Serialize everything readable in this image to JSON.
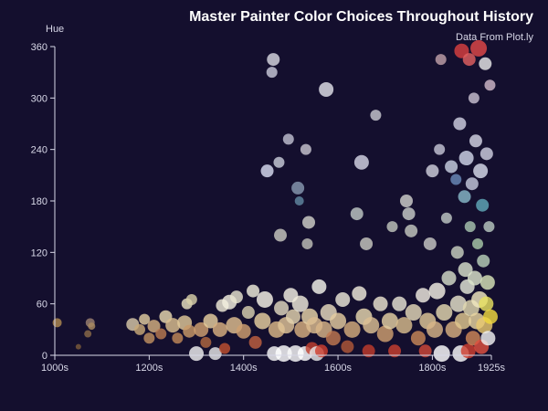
{
  "chart_data": {
    "type": "scatter",
    "title": "Master Painter Color Choices Throughout History",
    "subtitle": "Data From Plot.ly",
    "xlabel": "",
    "ylabel": "Hue",
    "xlim": [
      1000,
      1925
    ],
    "ylim": [
      0,
      360
    ],
    "x_ticks": [
      {
        "value": 1000,
        "label": "1000s"
      },
      {
        "value": 1200,
        "label": "1200s"
      },
      {
        "value": 1400,
        "label": "1400s"
      },
      {
        "value": 1600,
        "label": "1600s"
      },
      {
        "value": 1800,
        "label": "1800s"
      },
      {
        "value": 1925,
        "label": "1925s"
      }
    ],
    "y_ticks": [
      0,
      60,
      120,
      180,
      240,
      300,
      360
    ],
    "grid": false,
    "background": "#140f2e",
    "axis_color": "#d8d8e8",
    "points": [
      {
        "x": 1005,
        "y": 38,
        "s": 5,
        "c": "#b08a50"
      },
      {
        "x": 1050,
        "y": 10,
        "s": 3,
        "c": "#7a5a3a"
      },
      {
        "x": 1070,
        "y": 25,
        "s": 4,
        "c": "#8a6a48"
      },
      {
        "x": 1075,
        "y": 38,
        "s": 5,
        "c": "#9a8070"
      },
      {
        "x": 1078,
        "y": 34,
        "s": 4,
        "c": "#a88a60"
      },
      {
        "x": 1165,
        "y": 36,
        "s": 7,
        "c": "#d8c8a8"
      },
      {
        "x": 1180,
        "y": 30,
        "s": 6,
        "c": "#c8a878"
      },
      {
        "x": 1190,
        "y": 42,
        "s": 6,
        "c": "#e0cca0"
      },
      {
        "x": 1200,
        "y": 20,
        "s": 6,
        "c": "#c09060"
      },
      {
        "x": 1210,
        "y": 34,
        "s": 7,
        "c": "#d4b080"
      },
      {
        "x": 1225,
        "y": 25,
        "s": 6,
        "c": "#b87a50"
      },
      {
        "x": 1235,
        "y": 45,
        "s": 7,
        "c": "#e8d8b0"
      },
      {
        "x": 1250,
        "y": 35,
        "s": 8,
        "c": "#dcc090"
      },
      {
        "x": 1260,
        "y": 20,
        "s": 6,
        "c": "#c08858"
      },
      {
        "x": 1275,
        "y": 38,
        "s": 8,
        "c": "#e0c898"
      },
      {
        "x": 1280,
        "y": 60,
        "s": 6,
        "c": "#e8e0c0"
      },
      {
        "x": 1290,
        "y": 65,
        "s": 6,
        "c": "#d8d0a8"
      },
      {
        "x": 1285,
        "y": 28,
        "s": 7,
        "c": "#c89868"
      },
      {
        "x": 1300,
        "y": 2,
        "s": 8,
        "c": "#f0f0f0"
      },
      {
        "x": 1310,
        "y": 30,
        "s": 8,
        "c": "#d0a070"
      },
      {
        "x": 1320,
        "y": 15,
        "s": 6,
        "c": "#b06840"
      },
      {
        "x": 1330,
        "y": 40,
        "s": 8,
        "c": "#e8d0a0"
      },
      {
        "x": 1340,
        "y": 2,
        "s": 7,
        "c": "#e8e8e8"
      },
      {
        "x": 1350,
        "y": 30,
        "s": 8,
        "c": "#d8b080"
      },
      {
        "x": 1355,
        "y": 58,
        "s": 7,
        "c": "#f0ecd8"
      },
      {
        "x": 1360,
        "y": 8,
        "s": 6,
        "c": "#c05030"
      },
      {
        "x": 1370,
        "y": 62,
        "s": 8,
        "c": "#f4f0e0"
      },
      {
        "x": 1380,
        "y": 35,
        "s": 9,
        "c": "#e0c090"
      },
      {
        "x": 1385,
        "y": 68,
        "s": 7,
        "c": "#e8e4d0"
      },
      {
        "x": 1400,
        "y": 28,
        "s": 8,
        "c": "#d0a070"
      },
      {
        "x": 1410,
        "y": 50,
        "s": 7,
        "c": "#d8d0b0"
      },
      {
        "x": 1420,
        "y": 75,
        "s": 7,
        "c": "#f0eedc"
      },
      {
        "x": 1425,
        "y": 15,
        "s": 7,
        "c": "#c06040"
      },
      {
        "x": 1440,
        "y": 40,
        "s": 9,
        "c": "#e8d0a0"
      },
      {
        "x": 1445,
        "y": 65,
        "s": 9,
        "c": "#f8f4e8"
      },
      {
        "x": 1450,
        "y": 215,
        "s": 7,
        "c": "#d8dcf0"
      },
      {
        "x": 1460,
        "y": 330,
        "s": 6,
        "c": "#c8c8d8"
      },
      {
        "x": 1463,
        "y": 345,
        "s": 7,
        "c": "#d8d8e0"
      },
      {
        "x": 1465,
        "y": 2,
        "s": 8,
        "c": "#f8f8f8"
      },
      {
        "x": 1470,
        "y": 30,
        "s": 9,
        "c": "#dcb888"
      },
      {
        "x": 1475,
        "y": 225,
        "s": 6,
        "c": "#c8ccd8"
      },
      {
        "x": 1478,
        "y": 140,
        "s": 7,
        "c": "#c8c8c0"
      },
      {
        "x": 1480,
        "y": 55,
        "s": 8,
        "c": "#e0d8c0"
      },
      {
        "x": 1485,
        "y": 2,
        "s": 9,
        "c": "#ffffff"
      },
      {
        "x": 1490,
        "y": 35,
        "s": 9,
        "c": "#e0c498"
      },
      {
        "x": 1495,
        "y": 252,
        "s": 6,
        "c": "#c0c0d0"
      },
      {
        "x": 1500,
        "y": 70,
        "s": 8,
        "c": "#f4f0e4"
      },
      {
        "x": 1505,
        "y": 45,
        "s": 8,
        "c": "#e4d4b0"
      },
      {
        "x": 1510,
        "y": 2,
        "s": 9,
        "c": "#fafafa"
      },
      {
        "x": 1515,
        "y": 195,
        "s": 7,
        "c": "#8898b0"
      },
      {
        "x": 1518,
        "y": 180,
        "s": 5,
        "c": "#6088a0"
      },
      {
        "x": 1520,
        "y": 60,
        "s": 9,
        "c": "#f0ecdc"
      },
      {
        "x": 1525,
        "y": 30,
        "s": 9,
        "c": "#d8b080"
      },
      {
        "x": 1530,
        "y": 2,
        "s": 8,
        "c": "#ffffff"
      },
      {
        "x": 1532,
        "y": 240,
        "s": 6,
        "c": "#c8c4d0"
      },
      {
        "x": 1535,
        "y": 130,
        "s": 6,
        "c": "#c0c0b8"
      },
      {
        "x": 1538,
        "y": 155,
        "s": 7,
        "c": "#d0d0c8"
      },
      {
        "x": 1540,
        "y": 45,
        "s": 9,
        "c": "#e8d4a8"
      },
      {
        "x": 1545,
        "y": 8,
        "s": 7,
        "c": "#c04030"
      },
      {
        "x": 1550,
        "y": 35,
        "s": 9,
        "c": "#dcbc90"
      },
      {
        "x": 1555,
        "y": 2,
        "s": 8,
        "c": "#e8e8e8"
      },
      {
        "x": 1560,
        "y": 80,
        "s": 8,
        "c": "#f4f4ec"
      },
      {
        "x": 1565,
        "y": 5,
        "s": 7,
        "c": "#d04030"
      },
      {
        "x": 1570,
        "y": 30,
        "s": 9,
        "c": "#d8b488"
      },
      {
        "x": 1575,
        "y": 310,
        "s": 8,
        "c": "#e0e0e8"
      },
      {
        "x": 1580,
        "y": 50,
        "s": 9,
        "c": "#e8dcc0"
      },
      {
        "x": 1590,
        "y": 20,
        "s": 8,
        "c": "#c07850"
      },
      {
        "x": 1600,
        "y": 40,
        "s": 9,
        "c": "#e4cca0"
      },
      {
        "x": 1610,
        "y": 65,
        "s": 8,
        "c": "#ece8d8"
      },
      {
        "x": 1620,
        "y": 10,
        "s": 7,
        "c": "#b05838"
      },
      {
        "x": 1630,
        "y": 30,
        "s": 9,
        "c": "#d4ac7c"
      },
      {
        "x": 1640,
        "y": 165,
        "s": 7,
        "c": "#c0c8c4"
      },
      {
        "x": 1645,
        "y": 72,
        "s": 8,
        "c": "#f0ecdc"
      },
      {
        "x": 1650,
        "y": 225,
        "s": 8,
        "c": "#d4d4e4"
      },
      {
        "x": 1655,
        "y": 45,
        "s": 9,
        "c": "#e8d8b0"
      },
      {
        "x": 1660,
        "y": 130,
        "s": 7,
        "c": "#c8c8c0"
      },
      {
        "x": 1665,
        "y": 5,
        "s": 7,
        "c": "#c03c2c"
      },
      {
        "x": 1670,
        "y": 35,
        "s": 9,
        "c": "#dcc094"
      },
      {
        "x": 1680,
        "y": 280,
        "s": 6,
        "c": "#c8c8d0"
      },
      {
        "x": 1690,
        "y": 60,
        "s": 8,
        "c": "#ece4d0"
      },
      {
        "x": 1700,
        "y": 25,
        "s": 9,
        "c": "#d0a070"
      },
      {
        "x": 1710,
        "y": 40,
        "s": 9,
        "c": "#e4d0a4"
      },
      {
        "x": 1715,
        "y": 150,
        "s": 6,
        "c": "#c0c4bc"
      },
      {
        "x": 1720,
        "y": 5,
        "s": 7,
        "c": "#c84030"
      },
      {
        "x": 1730,
        "y": 60,
        "s": 8,
        "c": "#e8e4d4"
      },
      {
        "x": 1740,
        "y": 35,
        "s": 9,
        "c": "#d8bc8c"
      },
      {
        "x": 1745,
        "y": 180,
        "s": 7,
        "c": "#d0d0cc"
      },
      {
        "x": 1750,
        "y": 165,
        "s": 7,
        "c": "#c8ccc8"
      },
      {
        "x": 1755,
        "y": 145,
        "s": 7,
        "c": "#c4c8c0"
      },
      {
        "x": 1760,
        "y": 50,
        "s": 9,
        "c": "#e4d8b8"
      },
      {
        "x": 1770,
        "y": 20,
        "s": 8,
        "c": "#c88858"
      },
      {
        "x": 1780,
        "y": 70,
        "s": 8,
        "c": "#f0ece0"
      },
      {
        "x": 1785,
        "y": 5,
        "s": 7,
        "c": "#d04838"
      },
      {
        "x": 1790,
        "y": 40,
        "s": 9,
        "c": "#e0c898"
      },
      {
        "x": 1795,
        "y": 130,
        "s": 7,
        "c": "#c8c8c4"
      },
      {
        "x": 1800,
        "y": 215,
        "s": 7,
        "c": "#d0d0dc"
      },
      {
        "x": 1805,
        "y": 30,
        "s": 9,
        "c": "#d8b488"
      },
      {
        "x": 1810,
        "y": 75,
        "s": 9,
        "c": "#f4f0e4"
      },
      {
        "x": 1815,
        "y": 240,
        "s": 6,
        "c": "#c4c4d4"
      },
      {
        "x": 1818,
        "y": 345,
        "s": 6,
        "c": "#c0a0a8"
      },
      {
        "x": 1820,
        "y": 2,
        "s": 9,
        "c": "#ffffff"
      },
      {
        "x": 1825,
        "y": 50,
        "s": 9,
        "c": "#e4d8b0"
      },
      {
        "x": 1830,
        "y": 160,
        "s": 6,
        "c": "#c0c8c4"
      },
      {
        "x": 1835,
        "y": 90,
        "s": 8,
        "c": "#d4dcc8"
      },
      {
        "x": 1840,
        "y": 220,
        "s": 7,
        "c": "#c8d0e0"
      },
      {
        "x": 1845,
        "y": 30,
        "s": 9,
        "c": "#d8b080"
      },
      {
        "x": 1850,
        "y": 205,
        "s": 6,
        "c": "#6a8ab8"
      },
      {
        "x": 1853,
        "y": 120,
        "s": 7,
        "c": "#c8d0c0"
      },
      {
        "x": 1855,
        "y": 60,
        "s": 9,
        "c": "#e8e4cc"
      },
      {
        "x": 1858,
        "y": 270,
        "s": 7,
        "c": "#d0d0e0"
      },
      {
        "x": 1860,
        "y": 2,
        "s": 9,
        "c": "#fafafa"
      },
      {
        "x": 1862,
        "y": 355,
        "s": 8,
        "c": "#d84040"
      },
      {
        "x": 1865,
        "y": 40,
        "s": 9,
        "c": "#e0c890"
      },
      {
        "x": 1868,
        "y": 185,
        "s": 7,
        "c": "#88b8c8"
      },
      {
        "x": 1870,
        "y": 100,
        "s": 8,
        "c": "#d8e0cc"
      },
      {
        "x": 1872,
        "y": 230,
        "s": 8,
        "c": "#d0d4e8"
      },
      {
        "x": 1874,
        "y": 80,
        "s": 8,
        "c": "#e4e8d8"
      },
      {
        "x": 1876,
        "y": 5,
        "s": 8,
        "c": "#d04030"
      },
      {
        "x": 1878,
        "y": 345,
        "s": 7,
        "c": "#e06060"
      },
      {
        "x": 1880,
        "y": 150,
        "s": 6,
        "c": "#a8c4b0"
      },
      {
        "x": 1882,
        "y": 55,
        "s": 9,
        "c": "#e0d8b0"
      },
      {
        "x": 1884,
        "y": 200,
        "s": 7,
        "c": "#c4c8dc"
      },
      {
        "x": 1886,
        "y": 20,
        "s": 8,
        "c": "#d08858"
      },
      {
        "x": 1888,
        "y": 300,
        "s": 6,
        "c": "#c8c0d0"
      },
      {
        "x": 1890,
        "y": 90,
        "s": 8,
        "c": "#dce4cc"
      },
      {
        "x": 1892,
        "y": 250,
        "s": 7,
        "c": "#d4d4e4"
      },
      {
        "x": 1894,
        "y": 40,
        "s": 9,
        "c": "#e8d4a0"
      },
      {
        "x": 1896,
        "y": 130,
        "s": 6,
        "c": "#a8c8a8"
      },
      {
        "x": 1898,
        "y": 358,
        "s": 9,
        "c": "#e04848"
      },
      {
        "x": 1900,
        "y": 65,
        "s": 9,
        "c": "#f0e8c0"
      },
      {
        "x": 1902,
        "y": 215,
        "s": 8,
        "c": "#d8dcec"
      },
      {
        "x": 1904,
        "y": 10,
        "s": 8,
        "c": "#e05040"
      },
      {
        "x": 1906,
        "y": 175,
        "s": 7,
        "c": "#60a8b8"
      },
      {
        "x": 1908,
        "y": 110,
        "s": 7,
        "c": "#b8d0b8"
      },
      {
        "x": 1910,
        "y": 35,
        "s": 9,
        "c": "#e8c870"
      },
      {
        "x": 1912,
        "y": 340,
        "s": 7,
        "c": "#e8e8e8"
      },
      {
        "x": 1914,
        "y": 60,
        "s": 8,
        "c": "#e8e060"
      },
      {
        "x": 1915,
        "y": 235,
        "s": 7,
        "c": "#d0d0e0"
      },
      {
        "x": 1917,
        "y": 85,
        "s": 8,
        "c": "#d8e4b8"
      },
      {
        "x": 1918,
        "y": 20,
        "s": 8,
        "c": "#f0f0f0"
      },
      {
        "x": 1920,
        "y": 150,
        "s": 6,
        "c": "#b8c8c0"
      },
      {
        "x": 1922,
        "y": 315,
        "s": 6,
        "c": "#d0b8c8"
      },
      {
        "x": 1923,
        "y": 45,
        "s": 8,
        "c": "#f0d840"
      }
    ]
  }
}
